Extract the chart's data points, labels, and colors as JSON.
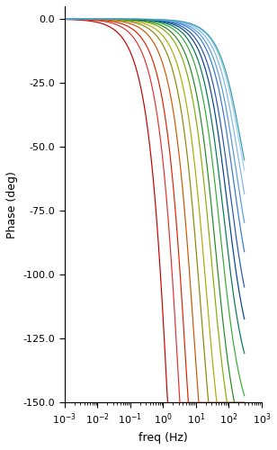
{
  "title": "",
  "xlabel": "freq (Hz)",
  "ylabel": "Phase (deg)",
  "xlim_log": [
    -3,
    3
  ],
  "ylim": [
    -150,
    5
  ],
  "yticks": [
    0.0,
    -25.0,
    -50.0,
    -75.0,
    -100.0,
    -125.0,
    -150.0
  ],
  "background_color": "#ffffff",
  "curves": [
    {
      "color": "#c00000",
      "fc": 1.8,
      "order": 4.0
    },
    {
      "color": "#e03030",
      "fc": 3.5,
      "order": 3.5
    },
    {
      "color": "#dd2200",
      "fc": 5.5,
      "order": 3.2
    },
    {
      "color": "#cc5500",
      "fc": 9.0,
      "order": 2.8
    },
    {
      "color": "#888800",
      "fc": 14.0,
      "order": 2.5
    },
    {
      "color": "#aaaa00",
      "fc": 20.0,
      "order": 2.3
    },
    {
      "color": "#88aa00",
      "fc": 30.0,
      "order": 2.1
    },
    {
      "color": "#228822",
      "fc": 40.0,
      "order": 2.0
    },
    {
      "color": "#33aa33",
      "fc": 55.0,
      "order": 1.85
    },
    {
      "color": "#007755",
      "fc": 70.0,
      "order": 1.7
    },
    {
      "color": "#004488",
      "fc": 90.0,
      "order": 1.6
    },
    {
      "color": "#2255aa",
      "fc": 110.0,
      "order": 1.5
    },
    {
      "color": "#3377cc",
      "fc": 140.0,
      "order": 1.4
    },
    {
      "color": "#5599dd",
      "fc": 165.0,
      "order": 1.3
    },
    {
      "color": "#7ab8e8",
      "fc": 195.0,
      "order": 1.2
    },
    {
      "color": "#99ccee",
      "fc": 220.0,
      "order": 1.1
    },
    {
      "color": "#3399aa",
      "fc": 230.0,
      "order": 1.05
    }
  ],
  "fmax": 300
}
